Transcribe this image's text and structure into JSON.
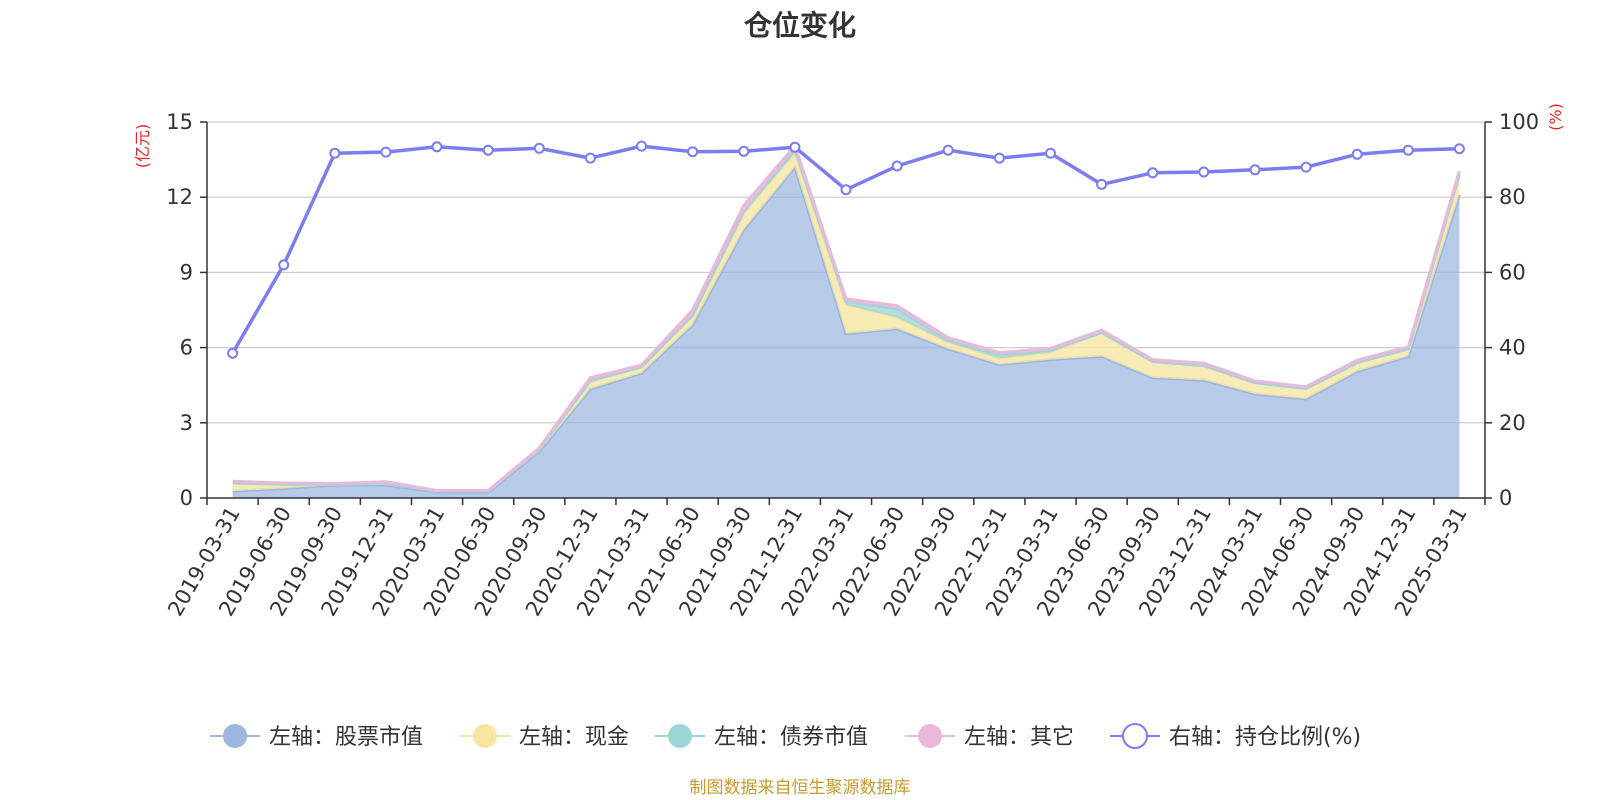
{
  "title": "仓位变化",
  "source": "制图数据来自恒生聚源数据库",
  "chart_data": {
    "type": "area",
    "title": "仓位变化",
    "x": [
      "2019-03-31",
      "2019-06-30",
      "2019-09-30",
      "2019-12-31",
      "2020-03-31",
      "2020-06-30",
      "2020-09-30",
      "2020-12-31",
      "2021-03-31",
      "2021-06-30",
      "2021-09-30",
      "2021-12-31",
      "2022-03-31",
      "2022-06-30",
      "2022-09-30",
      "2022-12-31",
      "2023-03-31",
      "2023-06-30",
      "2023-09-30",
      "2023-12-31",
      "2024-03-31",
      "2024-06-30",
      "2024-09-30",
      "2024-12-31",
      "2025-03-31"
    ],
    "left_axis": {
      "unit": "(亿元)",
      "ylim": [
        0,
        15
      ],
      "ticks": [
        "0",
        "3",
        "6",
        "9",
        "12",
        "15"
      ]
    },
    "right_axis": {
      "unit": "(%)",
      "ylim": [
        0,
        100
      ],
      "ticks": [
        "0",
        "20",
        "40",
        "60",
        "80",
        "100"
      ]
    },
    "grid": true,
    "legend_position": "bottom",
    "series": [
      {
        "name": "左轴：股票市值",
        "axis": "left",
        "stacked": true,
        "color": "#9bb7e1",
        "values": [
          0.27,
          0.38,
          0.52,
          0.52,
          0.23,
          0.23,
          1.85,
          4.35,
          4.98,
          6.9,
          10.7,
          13.2,
          6.55,
          6.75,
          5.95,
          5.32,
          5.52,
          5.65,
          4.8,
          4.7,
          4.15,
          3.95,
          5.05,
          5.65,
          12.1
        ]
      },
      {
        "name": "左轴：现金",
        "axis": "left",
        "stacked": true,
        "color": "#f7e6a3",
        "values": [
          0.33,
          0.17,
          0.03,
          0.08,
          0.05,
          0.05,
          0.1,
          0.33,
          0.25,
          0.35,
          0.65,
          0.55,
          1.15,
          0.45,
          0.25,
          0.25,
          0.28,
          0.95,
          0.65,
          0.58,
          0.45,
          0.42,
          0.35,
          0.3,
          0.8
        ]
      },
      {
        "name": "左轴：债券市值",
        "axis": "left",
        "stacked": true,
        "color": "#9dd5d6",
        "values": [
          0,
          0,
          0,
          0,
          0,
          0,
          0,
          0,
          0,
          0.05,
          0.08,
          0.15,
          0.15,
          0.35,
          0.1,
          0.15,
          0.1,
          0,
          0,
          0,
          0,
          0,
          0,
          0,
          0
        ]
      },
      {
        "name": "左轴：其它",
        "axis": "left",
        "stacked": true,
        "color": "#e9b9dc",
        "values": [
          0.07,
          0.05,
          0.03,
          0.05,
          0.02,
          0.02,
          0.05,
          0.12,
          0.07,
          0.2,
          0.25,
          0.15,
          0.1,
          0.12,
          0.1,
          0.08,
          0.07,
          0.1,
          0.07,
          0.1,
          0.07,
          0.07,
          0.1,
          0.08,
          0.15
        ]
      },
      {
        "name": "右轴：持仓比例(%)",
        "axis": "right",
        "type": "line",
        "color": "#7b7df0",
        "values": [
          38.5,
          62,
          91.7,
          92,
          93.4,
          92.5,
          93,
          90.4,
          93.6,
          92.1,
          92.2,
          93.3,
          82,
          88.3,
          92.5,
          90.4,
          91.7,
          83.4,
          86.5,
          86.7,
          87.3,
          88,
          91.4,
          92.5,
          92.9
        ]
      }
    ]
  }
}
